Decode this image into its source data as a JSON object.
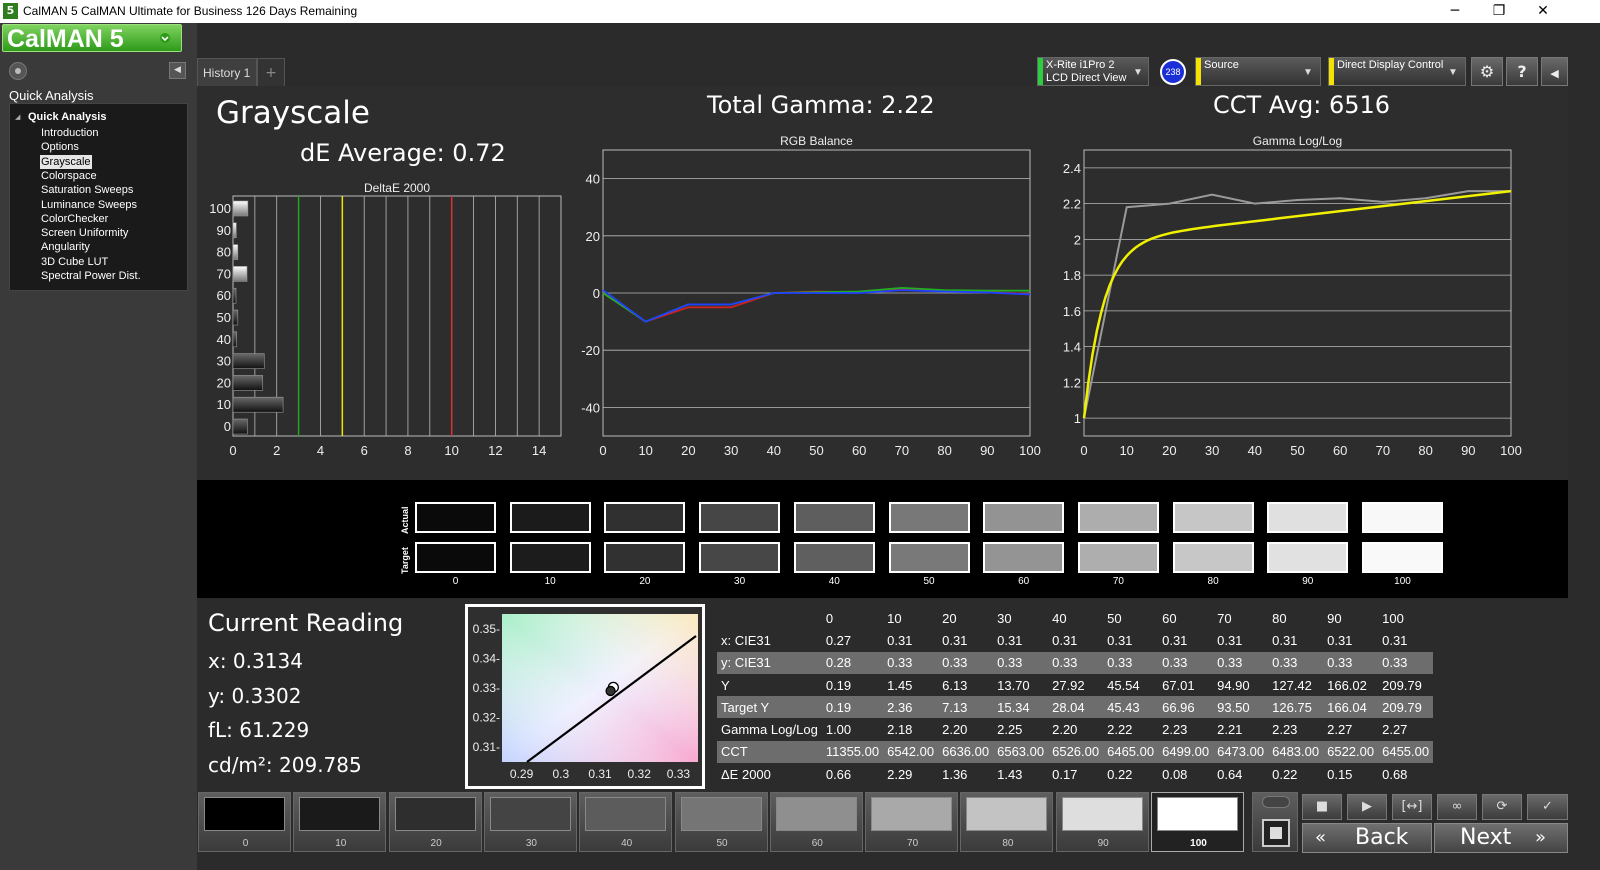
{
  "window": {
    "app_icon": "5",
    "title": "CalMAN 5 CalMAN Ultimate for Business 126 Days Remaining",
    "controls": [
      "─",
      "❐",
      "✕"
    ]
  },
  "logo": {
    "text": "CalMAN 5"
  },
  "sidebar": {
    "section_label": "Quick Analysis",
    "tree_root": "Quick Analysis",
    "items": [
      {
        "label": "Introduction",
        "selected": false
      },
      {
        "label": "Options",
        "selected": false
      },
      {
        "label": "Grayscale",
        "selected": true
      },
      {
        "label": "Colorspace",
        "selected": false
      },
      {
        "label": "Saturation Sweeps",
        "selected": false
      },
      {
        "label": "Luminance Sweeps",
        "selected": false
      },
      {
        "label": "ColorChecker",
        "selected": false
      },
      {
        "label": "Screen Uniformity",
        "selected": false
      },
      {
        "label": "Angularity",
        "selected": false
      },
      {
        "label": "3D Cube LUT",
        "selected": false
      },
      {
        "label": "Spectral Power Dist.",
        "selected": false
      }
    ]
  },
  "tabs": {
    "history": "History 1",
    "add": "+"
  },
  "devices": {
    "meter_line1": "X-Rite i1Pro 2",
    "meter_line2": "LCD Direct View",
    "meter_badge": "238",
    "source": "Source",
    "display": "Direct Display Control",
    "meter_color": "#2ecc40",
    "source_color": "#f4e200",
    "display_color": "#f4e200"
  },
  "main": {
    "page_title": "Grayscale",
    "total_gamma": "Total Gamma: 2.22",
    "cct_avg": "CCT Avg: 6516",
    "de_average": "dE Average: 0.72"
  },
  "charts": {
    "deltae": {
      "title": "DeltaE 2000",
      "y_labels": [
        "100",
        "90",
        "80",
        "70",
        "60",
        "50",
        "40",
        "30",
        "20",
        "10",
        "0"
      ],
      "x_labels": [
        "0",
        "2",
        "4",
        "6",
        "8",
        "10",
        "12",
        "14"
      ],
      "threshold_lines": [
        {
          "x": 3,
          "color": "#1fa51f"
        },
        {
          "x": 5,
          "color": "#e6e600"
        },
        {
          "x": 10,
          "color": "#d93030"
        }
      ]
    },
    "rgb": {
      "title": "RGB Balance",
      "y_labels": [
        "40",
        "20",
        "0",
        "-20",
        "-40"
      ],
      "x_labels": [
        "0",
        "10",
        "20",
        "30",
        "40",
        "50",
        "60",
        "70",
        "80",
        "90",
        "100"
      ]
    },
    "gamma": {
      "title": "Gamma Log/Log",
      "y_labels": [
        "2.4",
        "2.2",
        "2",
        "1.8",
        "1.6",
        "1.4",
        "1.2",
        "1"
      ],
      "x_labels": [
        "0",
        "10",
        "20",
        "30",
        "40",
        "50",
        "60",
        "70",
        "80",
        "90",
        "100"
      ]
    }
  },
  "chart_data": [
    {
      "type": "bar",
      "title": "DeltaE 2000",
      "categories": [
        "0",
        "10",
        "20",
        "30",
        "40",
        "50",
        "60",
        "70",
        "80",
        "90",
        "100"
      ],
      "values": [
        0.66,
        2.29,
        1.36,
        1.43,
        0.17,
        0.22,
        0.08,
        0.64,
        0.22,
        0.15,
        0.68
      ],
      "orientation": "horizontal",
      "xlim": [
        0,
        15
      ],
      "grid": true
    },
    {
      "type": "line",
      "title": "RGB Balance",
      "x": [
        0,
        10,
        20,
        30,
        40,
        50,
        60,
        70,
        80,
        90,
        100
      ],
      "series": [
        {
          "color": "#d02020",
          "values": [
            0,
            -10,
            -5,
            -5,
            0,
            0.5,
            0.2,
            1.5,
            0.7,
            0.3,
            -0.3
          ]
        },
        {
          "color": "#20b020",
          "values": [
            0,
            -10,
            -4,
            -4,
            0,
            0.3,
            0.5,
            1.8,
            1.0,
            0.8,
            0.8
          ]
        },
        {
          "color": "#2040ff",
          "values": [
            1,
            -10,
            -4,
            -4,
            0,
            0,
            0,
            1,
            0.5,
            0.2,
            -0.5
          ]
        }
      ],
      "ylim": [
        -50,
        50
      ],
      "grid": true
    },
    {
      "type": "line",
      "title": "Gamma Log/Log",
      "x": [
        0,
        10,
        20,
        30,
        40,
        50,
        60,
        70,
        80,
        90,
        100
      ],
      "series": [
        {
          "color": "#9a9a9a",
          "values": [
            1.0,
            2.18,
            2.2,
            2.25,
            2.2,
            2.22,
            2.23,
            2.21,
            2.23,
            2.27,
            2.27
          ]
        },
        {
          "color": "#f0f000",
          "values": [
            1.0,
            1.93,
            2.08,
            2.14,
            2.18,
            2.2,
            2.22,
            2.24,
            2.25,
            2.26,
            2.27
          ]
        }
      ],
      "ylim": [
        0.9,
        2.5
      ],
      "grid": true
    },
    {
      "type": "scatter",
      "title": "CIE",
      "x_ticks": [
        "0.29",
        "0.3",
        "0.31",
        "0.32",
        "0.33"
      ],
      "y_ticks": [
        "0.35-",
        "0.34-",
        "0.33-",
        "0.32-",
        "0.31-"
      ],
      "xlim": [
        0.285,
        0.335
      ],
      "ylim": [
        0.305,
        0.355
      ],
      "points": [
        {
          "x": 0.3134,
          "y": 0.3302
        },
        {
          "x": 0.3127,
          "y": 0.329
        }
      ]
    }
  ],
  "swatches": {
    "actual_label": "Actual",
    "target_label": "Target",
    "labels": [
      "0",
      "10",
      "20",
      "30",
      "40",
      "50",
      "60",
      "70",
      "80",
      "90",
      "100"
    ],
    "actual_colors": [
      "#0a0a0a",
      "#1b1b1b",
      "#303030",
      "#464646",
      "#5e5e5e",
      "#787878",
      "#939393",
      "#adadad",
      "#c6c6c6",
      "#e0e0e0",
      "#f8f8f8"
    ],
    "target_colors": [
      "#0a0a0a",
      "#1c1c1c",
      "#313131",
      "#474747",
      "#5f5f5f",
      "#797979",
      "#949494",
      "#aeaeae",
      "#c7c7c7",
      "#e1e1e1",
      "#f9f9f9"
    ]
  },
  "reading": {
    "title": "Current Reading",
    "x": "x: 0.3134",
    "y": "y: 0.3302",
    "fl": "fL: 61.229",
    "cdm2": "cd/m²: 209.785"
  },
  "table": {
    "header": [
      "",
      "0",
      "10",
      "20",
      "30",
      "40",
      "50",
      "60",
      "70",
      "80",
      "90",
      "100"
    ],
    "rows": [
      {
        "label": "x: CIE31",
        "values": [
          "0.27",
          "0.31",
          "0.31",
          "0.31",
          "0.31",
          "0.31",
          "0.31",
          "0.31",
          "0.31",
          "0.31",
          "0.31"
        ],
        "alt": false
      },
      {
        "label": "y: CIE31",
        "values": [
          "0.28",
          "0.33",
          "0.33",
          "0.33",
          "0.33",
          "0.33",
          "0.33",
          "0.33",
          "0.33",
          "0.33",
          "0.33"
        ],
        "alt": true
      },
      {
        "label": "Y",
        "values": [
          "0.19",
          "1.45",
          "6.13",
          "13.70",
          "27.92",
          "45.54",
          "67.01",
          "94.90",
          "127.42",
          "166.02",
          "209.79"
        ],
        "alt": false
      },
      {
        "label": "Target Y",
        "values": [
          "0.19",
          "2.36",
          "7.13",
          "15.34",
          "28.04",
          "45.43",
          "66.96",
          "93.50",
          "126.75",
          "166.04",
          "209.79"
        ],
        "alt": true
      },
      {
        "label": "Gamma Log/Log",
        "values": [
          "1.00",
          "2.18",
          "2.20",
          "2.25",
          "2.20",
          "2.22",
          "2.23",
          "2.21",
          "2.23",
          "2.27",
          "2.27"
        ],
        "alt": false
      },
      {
        "label": "CCT",
        "values": [
          "11355.00",
          "6542.00",
          "6636.00",
          "6563.00",
          "6526.00",
          "6465.00",
          "6499.00",
          "6473.00",
          "6483.00",
          "6522.00",
          "6455.00"
        ],
        "alt": true
      },
      {
        "label": "ΔE 2000",
        "values": [
          "0.66",
          "2.29",
          "1.36",
          "1.43",
          "0.17",
          "0.22",
          "0.08",
          "0.64",
          "0.22",
          "0.15",
          "0.68"
        ],
        "alt": false
      }
    ]
  },
  "bottom": {
    "patches": [
      {
        "label": "0",
        "color": "#000000"
      },
      {
        "label": "10",
        "color": "#1a1a1a"
      },
      {
        "label": "20",
        "color": "#2e2e2e"
      },
      {
        "label": "30",
        "color": "#444444"
      },
      {
        "label": "40",
        "color": "#5c5c5c"
      },
      {
        "label": "50",
        "color": "#757575"
      },
      {
        "label": "60",
        "color": "#8f8f8f"
      },
      {
        "label": "70",
        "color": "#a9a9a9"
      },
      {
        "label": "80",
        "color": "#c3c3c3"
      },
      {
        "label": "90",
        "color": "#dedede"
      },
      {
        "label": "100",
        "color": "#ffffff"
      }
    ],
    "back_label": "Back",
    "next_label": "Next"
  }
}
